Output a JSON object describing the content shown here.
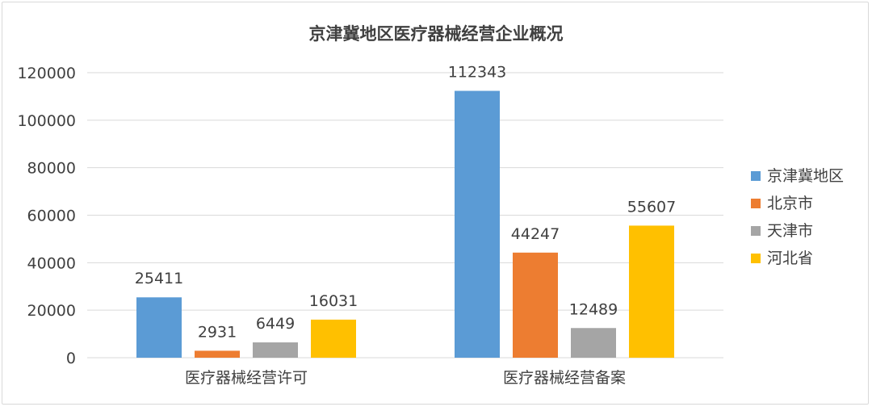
{
  "chart_data": {
    "type": "bar",
    "title": "京津冀地区医疗器械经营企业概况",
    "categories": [
      "医疗器械经营许可",
      "医疗器械经营备案"
    ],
    "series": [
      {
        "name": "京津冀地区",
        "color": "#5b9bd5",
        "values": [
          25411,
          112343
        ]
      },
      {
        "name": "北京市",
        "color": "#ed7d31",
        "values": [
          2931,
          44247
        ]
      },
      {
        "name": "天津市",
        "color": "#a5a5a5",
        "values": [
          6449,
          12489
        ]
      },
      {
        "name": "河北省",
        "color": "#ffc000",
        "values": [
          16031,
          55607
        ]
      }
    ],
    "ylim": [
      0,
      120000
    ],
    "yticks": [
      0,
      20000,
      40000,
      60000,
      80000,
      100000,
      120000
    ],
    "grid": true,
    "legend": "right"
  }
}
